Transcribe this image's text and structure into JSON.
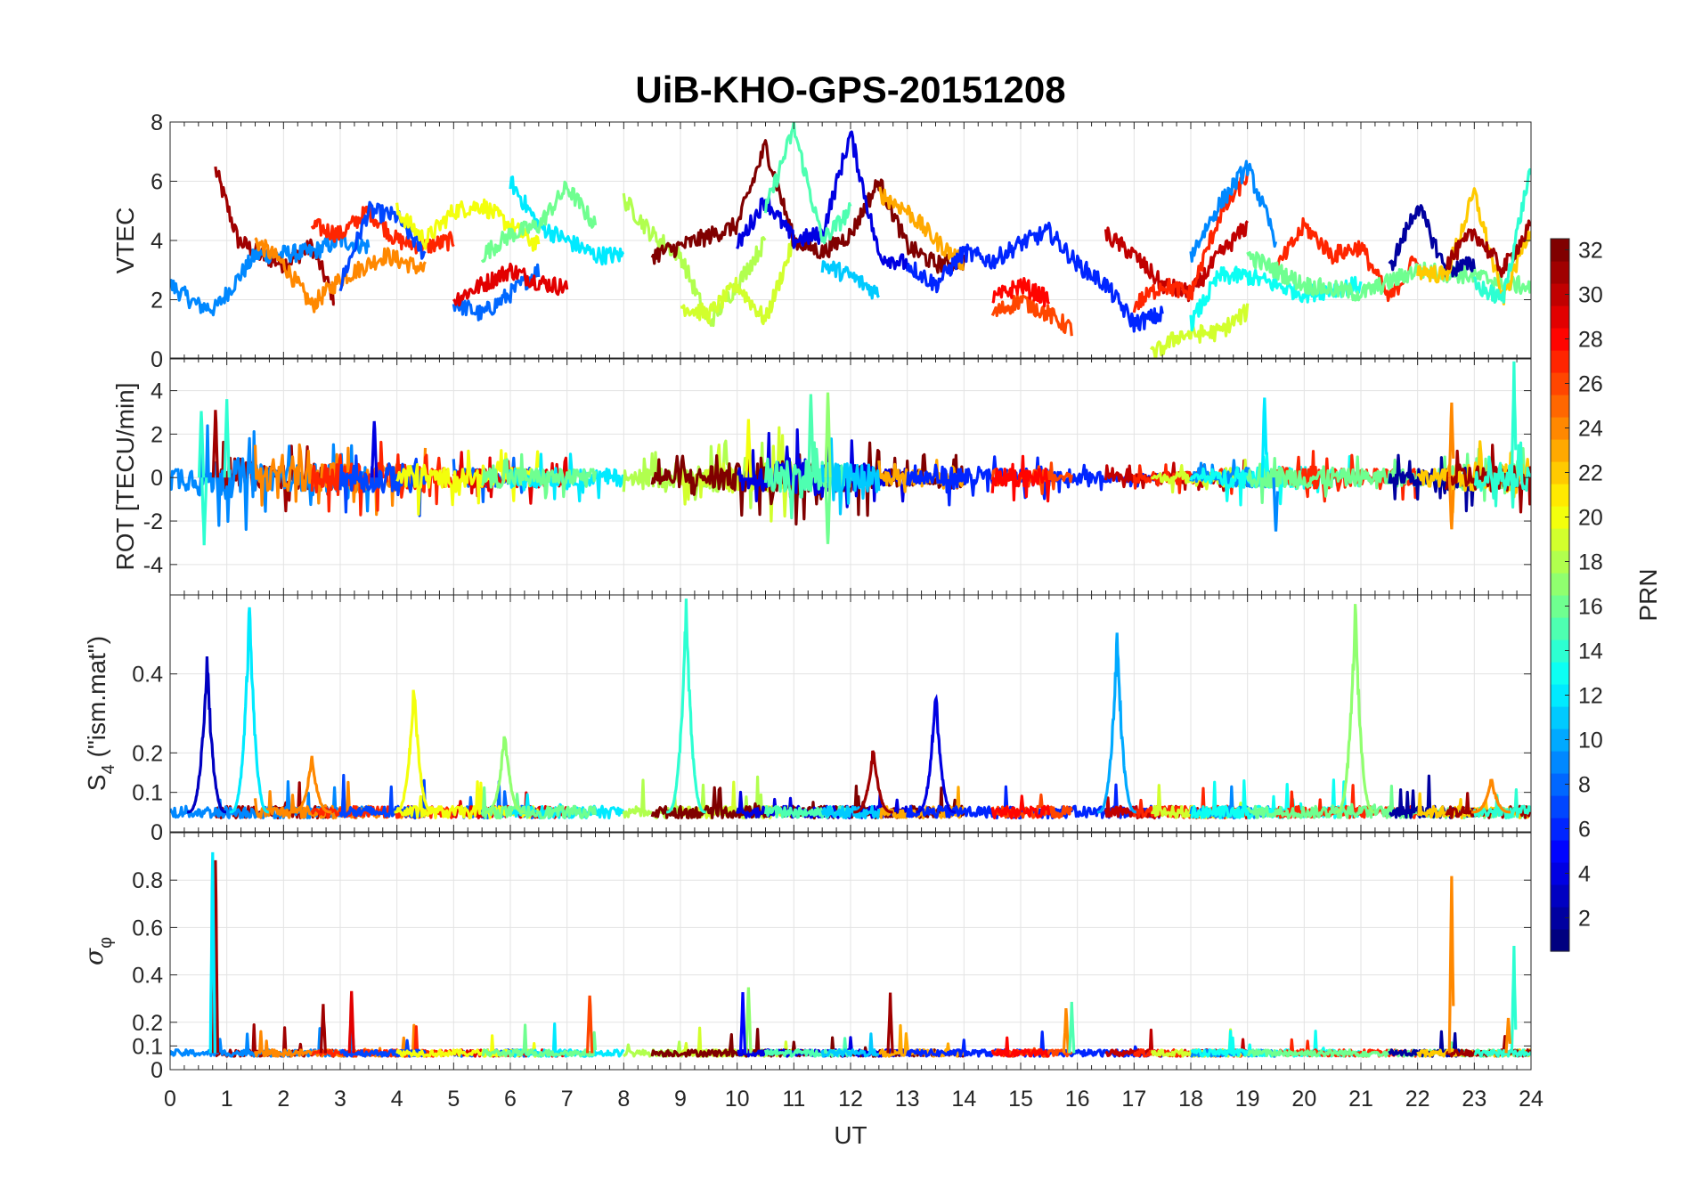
{
  "chart_data": {
    "type": "line",
    "title": "UiB-KHO-GPS-20151208",
    "xlabel": "UT",
    "xlim": [
      0,
      24
    ],
    "xticks": [
      0,
      1,
      2,
      3,
      4,
      5,
      6,
      7,
      8,
      9,
      10,
      11,
      12,
      13,
      14,
      15,
      16,
      17,
      18,
      19,
      20,
      21,
      22,
      23,
      24
    ],
    "grid": true,
    "colorbar": {
      "label": "PRN",
      "range": [
        1,
        32
      ],
      "ticks": [
        2,
        4,
        6,
        8,
        10,
        12,
        14,
        16,
        18,
        20,
        22,
        24,
        26,
        28,
        30,
        32
      ],
      "colormap": "jet",
      "placement": "right"
    },
    "panels": [
      {
        "ylabel": "VTEC",
        "ylim": [
          0,
          8
        ],
        "yticks": [
          0,
          2,
          4,
          6,
          8
        ]
      },
      {
        "ylabel": "ROT [TECU/min]",
        "ylim": [
          -5.4,
          5.5
        ],
        "yticks": [
          -4,
          -2,
          0,
          2,
          4
        ]
      },
      {
        "ylabel": "S4 (\"ism.mat\")",
        "ylabel_main": "S",
        "ylabel_sub": "4",
        "ylabel_rest": " (\"ism.mat\")",
        "ylim": [
          0,
          0.6
        ],
        "yticks": [
          0,
          0.1,
          0.2,
          0.4
        ]
      },
      {
        "ylabel": "σφ",
        "ylabel_main": "σ",
        "ylabel_sub": "φ",
        "ylim": [
          0,
          1
        ],
        "yticks": [
          0,
          0.1,
          0.2,
          0.4,
          0.6,
          0.8
        ]
      }
    ],
    "vtec_arcs": [
      {
        "prn": 31,
        "t": [
          0.8,
          1.2,
          1.6,
          2,
          2.5,
          2.9
        ],
        "v": [
          6.4,
          4,
          3.5,
          3.2,
          3.8,
          2
        ]
      },
      {
        "prn": 9,
        "t": [
          0,
          0.5,
          0.8,
          1.5,
          2.5,
          3,
          3.5
        ],
        "v": [
          2.5,
          1.8,
          1.7,
          3.5,
          3.6,
          4,
          3.8
        ]
      },
      {
        "prn": 24,
        "t": [
          1.5,
          2,
          2.5,
          3,
          3.8,
          4.5
        ],
        "v": [
          4,
          3.2,
          1.8,
          2.7,
          3.5,
          3
        ]
      },
      {
        "prn": 27,
        "t": [
          2.5,
          3,
          3.5,
          4,
          4.5,
          5
        ],
        "v": [
          4.5,
          4.2,
          5,
          4,
          3.8,
          4
        ]
      },
      {
        "prn": 7,
        "t": [
          3,
          3.5,
          4,
          4.5
        ],
        "v": [
          2.5,
          5,
          4.8,
          3.5
        ]
      },
      {
        "prn": 8,
        "t": [
          5,
          5.5,
          6,
          6.5
        ],
        "v": [
          1.9,
          1.5,
          2.2,
          3
        ]
      },
      {
        "prn": 29,
        "t": [
          5,
          5.5,
          6,
          6.5,
          7
        ],
        "v": [
          2,
          2.5,
          3,
          2.6,
          2.4
        ]
      },
      {
        "prn": 20,
        "t": [
          4,
          4.5,
          5,
          5.5,
          6,
          6.5
        ],
        "v": [
          5,
          4,
          5,
          5.2,
          4.5,
          3.8
        ]
      },
      {
        "prn": 12,
        "t": [
          6,
          6.5,
          7,
          7.5,
          8
        ],
        "v": [
          6,
          4.5,
          4,
          3.5,
          3.5
        ]
      },
      {
        "prn": 16,
        "t": [
          5.5,
          6,
          6.5,
          7,
          7.5
        ],
        "v": [
          3.5,
          4.2,
          4.5,
          5.8,
          4.5
        ]
      },
      {
        "prn": 18,
        "t": [
          8,
          8.5,
          9,
          9.5,
          10,
          10.5
        ],
        "v": [
          5.4,
          4.2,
          3.5,
          1.2,
          2.5,
          4
        ]
      },
      {
        "prn": 19,
        "t": [
          9,
          9.5,
          10,
          10.5,
          11
        ],
        "v": [
          1.8,
          1.5,
          2.5,
          1.3,
          4
        ]
      },
      {
        "prn": 32,
        "t": [
          8.5,
          9,
          10,
          10.5,
          11,
          11.5,
          12,
          12.5,
          13,
          13.5,
          14
        ],
        "v": [
          3.5,
          3.8,
          4.5,
          7.2,
          4,
          3.6,
          4.2,
          6,
          3.8,
          3.2,
          3.3
        ]
      },
      {
        "prn": 4,
        "t": [
          10,
          10.5,
          11,
          11.5,
          12,
          12.5,
          13
        ],
        "v": [
          3.8,
          5.4,
          4,
          4.2,
          7.6,
          3.5,
          3.2
        ]
      },
      {
        "prn": 15,
        "t": [
          10.5,
          11,
          11.5,
          12
        ],
        "v": [
          5,
          7.8,
          4,
          5
        ]
      },
      {
        "prn": 23,
        "t": [
          12.5,
          13,
          13.5,
          14
        ],
        "v": [
          5.6,
          5,
          4,
          3.2
        ]
      },
      {
        "prn": 11,
        "t": [
          11.5,
          12,
          12.5
        ],
        "v": [
          3.2,
          2.8,
          2.2
        ]
      },
      {
        "prn": 6,
        "t": [
          13,
          13.5,
          14,
          14.5,
          15,
          15.5,
          16,
          16.5,
          17,
          17.5
        ],
        "v": [
          3.2,
          2.5,
          3.6,
          3.3,
          3.9,
          4.3,
          3.2,
          2.5,
          1.2,
          1.5
        ]
      },
      {
        "prn": 26,
        "t": [
          14.5,
          15,
          15.5,
          15.9
        ],
        "v": [
          1.5,
          2,
          1.5,
          1
        ]
      },
      {
        "prn": 28,
        "t": [
          14.5,
          15,
          15.5
        ],
        "v": [
          2,
          2.5,
          2
        ]
      },
      {
        "prn": 30,
        "t": [
          16.5,
          17,
          17.5,
          18,
          18.5,
          19
        ],
        "v": [
          4.2,
          3.5,
          2.5,
          2.2,
          3.5,
          4.5
        ]
      },
      {
        "prn": 27,
        "t": [
          17,
          17.5,
          18,
          18.5,
          19
        ],
        "v": [
          1.8,
          2.5,
          2.2,
          4.8,
          6.2
        ]
      },
      {
        "prn": 19,
        "t": [
          17.3,
          17.8,
          18.5,
          19
        ],
        "v": [
          0.1,
          0.8,
          0.9,
          1.6
        ]
      },
      {
        "prn": 9,
        "t": [
          18,
          18.5,
          19,
          19.5
        ],
        "v": [
          3.5,
          5.2,
          6.5,
          4
        ]
      },
      {
        "prn": 13,
        "t": [
          18,
          18.5,
          19,
          20,
          21
        ],
        "v": [
          1.2,
          2.8,
          2.8,
          2.2,
          2.5
        ]
      },
      {
        "prn": 27,
        "t": [
          19.5,
          20,
          20.5,
          21,
          21.5,
          22
        ],
        "v": [
          3,
          4.5,
          3.5,
          3.8,
          2,
          3.5
        ]
      },
      {
        "prn": 16,
        "t": [
          19,
          20,
          21,
          22,
          23,
          24
        ],
        "v": [
          3.5,
          2.5,
          2.2,
          3,
          2.8,
          2.4
        ]
      },
      {
        "prn": 2,
        "t": [
          21.5,
          22,
          22.5,
          23
        ],
        "v": [
          3,
          5.2,
          3,
          3.2
        ]
      },
      {
        "prn": 22,
        "t": [
          22,
          22.5,
          23,
          23.5,
          24
        ],
        "v": [
          3,
          2.8,
          5.6,
          2,
          4.5
        ]
      },
      {
        "prn": 31,
        "t": [
          22.5,
          23,
          23.5,
          24
        ],
        "v": [
          3.2,
          4.3,
          3,
          4.5
        ]
      },
      {
        "prn": 14,
        "t": [
          23,
          23.5,
          24
        ],
        "v": [
          2.5,
          2,
          6.5
        ]
      }
    ],
    "rot_envelope_hourly": [
      1.2,
      1.8,
      1.2,
      1.3,
      1.3,
      0.9,
      0.9,
      0.8,
      0.8,
      0.9,
      1.3,
      1.8,
      1.3,
      0.8,
      1.0,
      0.8,
      0.5,
      0.4,
      0.5,
      0.9,
      1.0,
      0.8,
      0.8,
      1.2,
      1.2
    ],
    "rot_spikes": [
      {
        "prn": 14,
        "t": 0.55,
        "v": 3.3
      },
      {
        "prn": 14,
        "t": 0.6,
        "v": -3.3
      },
      {
        "prn": 31,
        "t": 0.8,
        "v": 3.4
      },
      {
        "prn": 14,
        "t": 1.0,
        "v": 4.0
      },
      {
        "prn": 4,
        "t": 3.6,
        "v": 3.0
      },
      {
        "prn": 20,
        "t": 10.2,
        "v": 2.8
      },
      {
        "prn": 15,
        "t": 11.3,
        "v": 4.5
      },
      {
        "prn": 16,
        "t": 11.6,
        "v": -3.5
      },
      {
        "prn": 17,
        "t": 11.6,
        "v": 4.3
      },
      {
        "prn": 12,
        "t": 19.3,
        "v": 4.3
      },
      {
        "prn": 9,
        "t": 19.5,
        "v": -2.8
      },
      {
        "prn": 24,
        "t": 22.6,
        "v": 3.7
      },
      {
        "prn": 24,
        "t": 22.6,
        "v": -2.6
      },
      {
        "prn": 14,
        "t": 23.7,
        "v": 5.4
      }
    ],
    "s4_baseline": 0.05,
    "s4_spikes": [
      {
        "prn": 3,
        "t": 0.65,
        "v": 0.47
      },
      {
        "prn": 12,
        "t": 1.4,
        "v": 0.6
      },
      {
        "prn": 24,
        "t": 2.5,
        "v": 0.2
      },
      {
        "prn": 20,
        "t": 4.3,
        "v": 0.4
      },
      {
        "prn": 17,
        "t": 5.9,
        "v": 0.27
      },
      {
        "prn": 14,
        "t": 9.1,
        "v": 0.6
      },
      {
        "prn": 31,
        "t": 12.4,
        "v": 0.22
      },
      {
        "prn": 4,
        "t": 13.5,
        "v": 0.38
      },
      {
        "prn": 10,
        "t": 16.7,
        "v": 0.53
      },
      {
        "prn": 17,
        "t": 20.9,
        "v": 0.6
      },
      {
        "prn": 24,
        "t": 23.3,
        "v": 0.14
      }
    ],
    "sigma_baseline": 0.07,
    "sigma_spikes": [
      {
        "prn": 31,
        "t": 0.8,
        "v": 0.93
      },
      {
        "prn": 12,
        "t": 0.75,
        "v": 1.0
      },
      {
        "prn": 29,
        "t": 3.2,
        "v": 0.34
      },
      {
        "prn": 31,
        "t": 2.7,
        "v": 0.28
      },
      {
        "prn": 26,
        "t": 7.4,
        "v": 0.34
      },
      {
        "prn": 17,
        "t": 10.2,
        "v": 0.38
      },
      {
        "prn": 5,
        "t": 10.1,
        "v": 0.33
      },
      {
        "prn": 31,
        "t": 12.7,
        "v": 0.33
      },
      {
        "prn": 24,
        "t": 15.8,
        "v": 0.27
      },
      {
        "prn": 15,
        "t": 15.9,
        "v": 0.29
      },
      {
        "prn": 24,
        "t": 22.6,
        "v": 0.93
      },
      {
        "prn": 14,
        "t": 23.7,
        "v": 0.53
      },
      {
        "prn": 24,
        "t": 23.6,
        "v": 0.23
      }
    ]
  }
}
